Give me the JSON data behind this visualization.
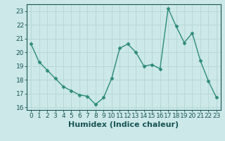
{
  "x": [
    0,
    1,
    2,
    3,
    4,
    5,
    6,
    7,
    8,
    9,
    10,
    11,
    12,
    13,
    14,
    15,
    16,
    17,
    18,
    19,
    20,
    21,
    22,
    23
  ],
  "y": [
    20.6,
    19.3,
    18.7,
    18.1,
    17.5,
    17.2,
    16.9,
    16.8,
    16.2,
    16.7,
    18.1,
    20.3,
    20.6,
    20.0,
    19.0,
    19.1,
    18.8,
    23.2,
    21.9,
    20.7,
    21.4,
    19.4,
    17.9,
    16.7
  ],
  "line_color": "#2d8b7a",
  "marker": "D",
  "marker_size": 2.5,
  "bg_color": "#cce8e8",
  "grid_color": "#b8d8d8",
  "xlabel": "Humidex (Indice chaleur)",
  "xlim": [
    -0.5,
    23.5
  ],
  "ylim": [
    15.8,
    23.5
  ],
  "yticks": [
    16,
    17,
    18,
    19,
    20,
    21,
    22,
    23
  ],
  "xticks": [
    0,
    1,
    2,
    3,
    4,
    5,
    6,
    7,
    8,
    9,
    10,
    11,
    12,
    13,
    14,
    15,
    16,
    17,
    18,
    19,
    20,
    21,
    22,
    23
  ],
  "tick_color": "#1a5555",
  "label_fontsize": 6.5,
  "xlabel_fontsize": 8,
  "line_width": 1.0
}
